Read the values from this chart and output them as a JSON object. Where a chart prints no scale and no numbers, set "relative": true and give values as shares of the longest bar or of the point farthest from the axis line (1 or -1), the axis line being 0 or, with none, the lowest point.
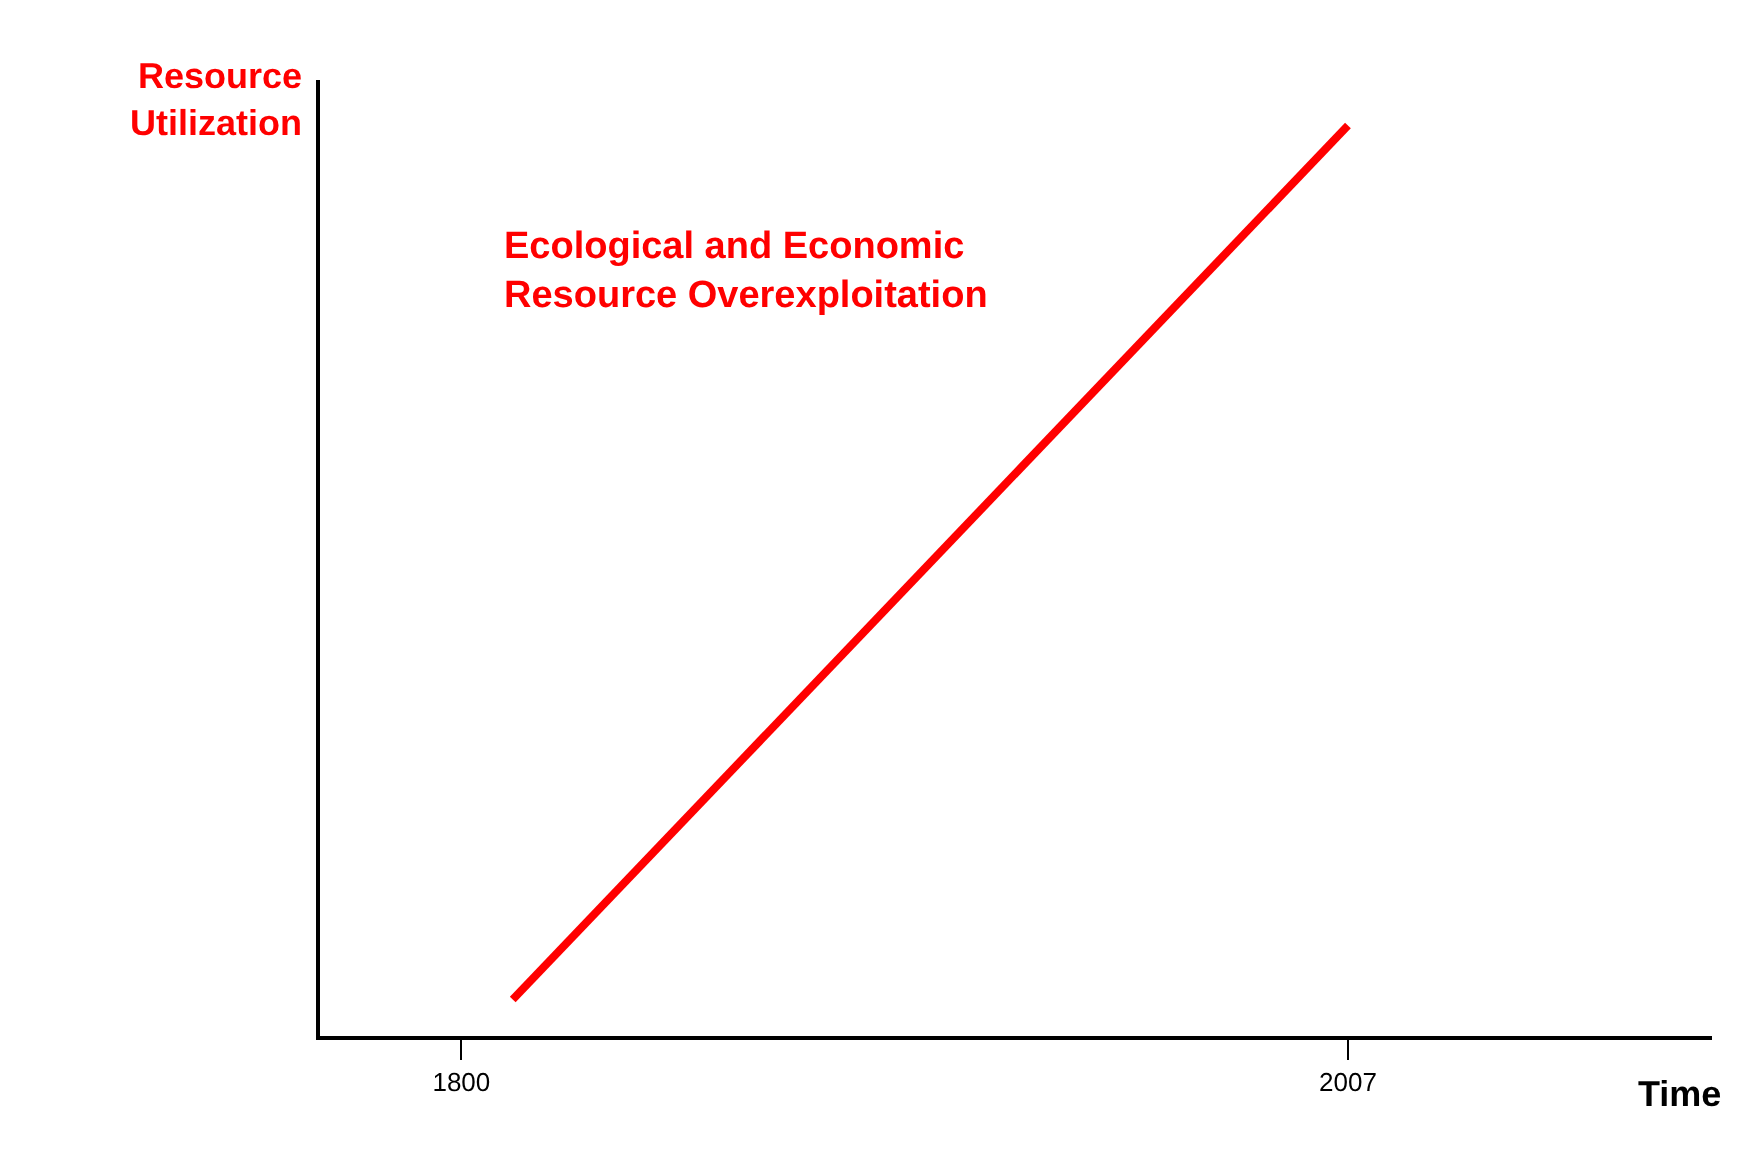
{
  "chart_data": {
    "type": "line",
    "relative": true,
    "xlabel": "Time",
    "ylabel": "Resource\nUtilization",
    "annotations": [
      "Ecological and Economic\nResource Overexploitation"
    ],
    "x": [
      1812,
      2007
    ],
    "series": [
      {
        "color": "#ff0000",
        "values": [
          0.04,
          1
        ]
      }
    ],
    "xlim": [
      1767,
      2092
    ],
    "xticks": [
      1800,
      2007
    ],
    "marker": "none",
    "line_style": "solid"
  }
}
